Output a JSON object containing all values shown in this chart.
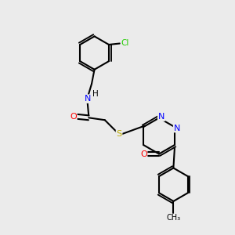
{
  "bg_color": "#ebebeb",
  "bond_color": "#000000",
  "bond_width": 1.5,
  "figsize": [
    3.0,
    3.0
  ],
  "dpi": 100,
  "atom_colors": {
    "C": "#000000",
    "N": "#0000ff",
    "O": "#ff0000",
    "S": "#bbaa00",
    "Cl": "#22cc00",
    "H": "#000000"
  }
}
